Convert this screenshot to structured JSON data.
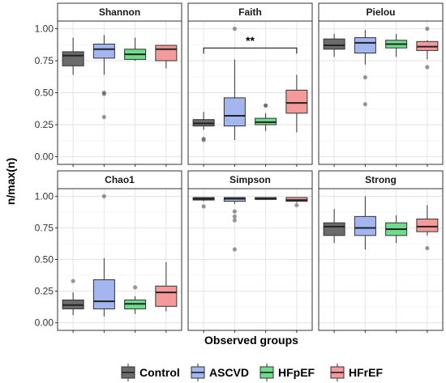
{
  "chart_data": {
    "type": "boxplot",
    "ylabel": "n/max(n)",
    "xlabel": "Observed groups",
    "ylim": [
      -0.06,
      1.06
    ],
    "yticks": [
      "0.00",
      "0.25",
      "0.50",
      "0.75",
      "1.00"
    ],
    "grid": true,
    "legend_position": "bottom",
    "groups": [
      {
        "name": "Control",
        "color": "#6b6b6b"
      },
      {
        "name": "ASCVD",
        "color": "#a3b6ef"
      },
      {
        "name": "HFpEF",
        "color": "#6fdc8c"
      },
      {
        "name": "HFrEF",
        "color": "#f59a9a"
      }
    ],
    "panels": [
      {
        "title": "Shannon",
        "boxes": [
          {
            "group": "Control",
            "whisker_low": 0.64,
            "q1": 0.71,
            "median": 0.79,
            "q3": 0.82,
            "whisker_high": 0.93,
            "outliers": []
          },
          {
            "group": "ASCVD",
            "whisker_low": 0.64,
            "q1": 0.77,
            "median": 0.84,
            "q3": 0.88,
            "whisker_high": 0.95,
            "outliers": [
              0.5,
              0.49,
              0.31
            ]
          },
          {
            "group": "HFpEF",
            "whisker_low": 0.75,
            "q1": 0.76,
            "median": 0.8,
            "q3": 0.84,
            "whisker_high": 0.93,
            "outliers": []
          },
          {
            "group": "HFrEF",
            "whisker_low": 0.69,
            "q1": 0.75,
            "median": 0.84,
            "q3": 0.87,
            "whisker_high": 0.87,
            "outliers": []
          }
        ]
      },
      {
        "title": "Faith",
        "significance": {
          "label": "**",
          "from": "Control",
          "to": "HFrEF",
          "y": 0.85
        },
        "boxes": [
          {
            "group": "Control",
            "whisker_low": 0.21,
            "q1": 0.24,
            "median": 0.26,
            "q3": 0.29,
            "whisker_high": 0.35,
            "outliers": [
              0.14,
              0.13
            ]
          },
          {
            "group": "ASCVD",
            "whisker_low": 0.13,
            "q1": 0.24,
            "median": 0.32,
            "q3": 0.46,
            "whisker_high": 0.76,
            "outliers": [
              1.0
            ]
          },
          {
            "group": "HFpEF",
            "whisker_low": 0.2,
            "q1": 0.25,
            "median": 0.27,
            "q3": 0.3,
            "whisker_high": 0.34,
            "outliers": [
              0.4,
              0.4
            ]
          },
          {
            "group": "HFrEF",
            "whisker_low": 0.19,
            "q1": 0.34,
            "median": 0.42,
            "q3": 0.52,
            "whisker_high": 0.64,
            "outliers": []
          }
        ]
      },
      {
        "title": "Pielou",
        "boxes": [
          {
            "group": "Control",
            "whisker_low": 0.78,
            "q1": 0.84,
            "median": 0.87,
            "q3": 0.92,
            "whisker_high": 0.96,
            "outliers": []
          },
          {
            "group": "ASCVD",
            "whisker_low": 0.72,
            "q1": 0.81,
            "median": 0.89,
            "q3": 0.93,
            "whisker_high": 0.99,
            "outliers": [
              0.62,
              0.41
            ]
          },
          {
            "group": "HFpEF",
            "whisker_low": 0.78,
            "q1": 0.85,
            "median": 0.88,
            "q3": 0.91,
            "whisker_high": 0.96,
            "outliers": []
          },
          {
            "group": "HFrEF",
            "whisker_low": 0.76,
            "q1": 0.83,
            "median": 0.86,
            "q3": 0.9,
            "whisker_high": 0.91,
            "outliers": [
              1.0,
              0.7
            ]
          }
        ]
      },
      {
        "title": "Chao1",
        "boxes": [
          {
            "group": "Control",
            "whisker_low": 0.06,
            "q1": 0.11,
            "median": 0.14,
            "q3": 0.18,
            "whisker_high": 0.24,
            "outliers": [
              0.33
            ]
          },
          {
            "group": "ASCVD",
            "whisker_low": 0.05,
            "q1": 0.11,
            "median": 0.17,
            "q3": 0.34,
            "whisker_high": 0.51,
            "outliers": [
              1.0
            ]
          },
          {
            "group": "HFpEF",
            "whisker_low": 0.07,
            "q1": 0.11,
            "median": 0.15,
            "q3": 0.18,
            "whisker_high": 0.21,
            "outliers": [
              0.28
            ]
          },
          {
            "group": "HFrEF",
            "whisker_low": 0.09,
            "q1": 0.13,
            "median": 0.24,
            "q3": 0.29,
            "whisker_high": 0.48,
            "outliers": []
          }
        ]
      },
      {
        "title": "Simpson",
        "boxes": [
          {
            "group": "Control",
            "whisker_low": 0.96,
            "q1": 0.97,
            "median": 0.98,
            "q3": 0.99,
            "whisker_high": 0.99,
            "outliers": [
              0.92
            ]
          },
          {
            "group": "ASCVD",
            "whisker_low": 0.94,
            "q1": 0.96,
            "median": 0.98,
            "q3": 0.99,
            "whisker_high": 0.99,
            "outliers": [
              0.88,
              0.84,
              0.81,
              0.58
            ]
          },
          {
            "group": "HFpEF",
            "whisker_low": 0.97,
            "q1": 0.975,
            "median": 0.98,
            "q3": 0.99,
            "whisker_high": 0.99,
            "outliers": []
          },
          {
            "group": "HFrEF",
            "whisker_low": 0.95,
            "q1": 0.96,
            "median": 0.97,
            "q3": 0.99,
            "whisker_high": 0.99,
            "outliers": [
              0.93
            ]
          }
        ]
      },
      {
        "title": "Strong",
        "boxes": [
          {
            "group": "Control",
            "whisker_low": 0.63,
            "q1": 0.69,
            "median": 0.76,
            "q3": 0.79,
            "whisker_high": 0.9,
            "outliers": []
          },
          {
            "group": "ASCVD",
            "whisker_low": 0.58,
            "q1": 0.69,
            "median": 0.75,
            "q3": 0.84,
            "whisker_high": 1.0,
            "outliers": []
          },
          {
            "group": "HFpEF",
            "whisker_low": 0.63,
            "q1": 0.69,
            "median": 0.74,
            "q3": 0.79,
            "whisker_high": 0.85,
            "outliers": []
          },
          {
            "group": "HFrEF",
            "whisker_low": 0.69,
            "q1": 0.72,
            "median": 0.76,
            "q3": 0.82,
            "whisker_high": 0.93,
            "outliers": [
              0.59
            ]
          }
        ]
      }
    ]
  }
}
